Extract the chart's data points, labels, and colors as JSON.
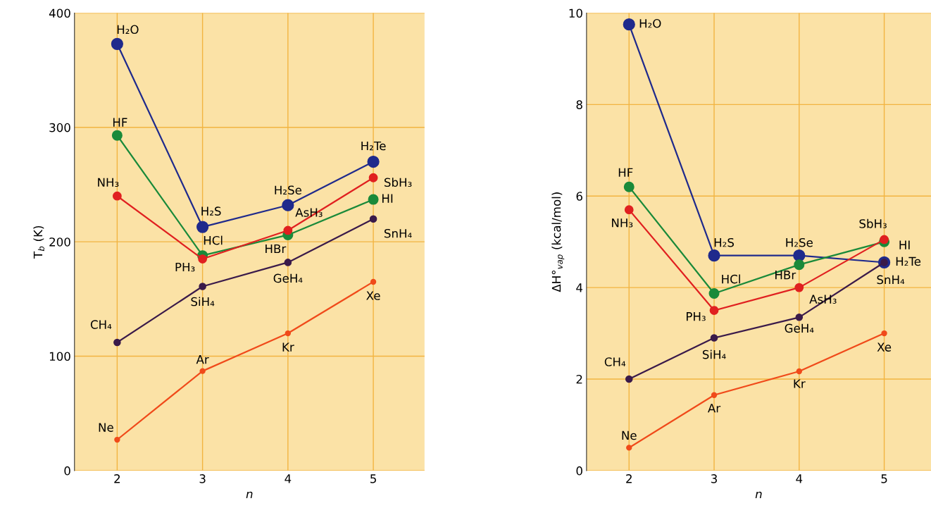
{
  "chart_data": [
    {
      "type": "line",
      "xlabel": "n",
      "ylabel": "T$_{b}$ (K)",
      "x": [
        2,
        3,
        4,
        5
      ],
      "xlim": [
        1.5,
        5.6
      ],
      "xticks": [
        2,
        3,
        4,
        5
      ],
      "ylim": [
        0,
        400
      ],
      "yticks": [
        0,
        100,
        200,
        300,
        400
      ],
      "grid": true,
      "marker": "circle",
      "line_style": "solid",
      "series": [
        {
          "color": "#1f2a8c",
          "values": [
            373,
            213,
            232,
            270
          ]
        },
        {
          "color": "#1a8a3a",
          "values": [
            293,
            188,
            206,
            237
          ]
        },
        {
          "color": "#e02020",
          "values": [
            240,
            185,
            210,
            256
          ]
        },
        {
          "color": "#3a1a4a",
          "values": [
            112,
            161,
            182,
            220
          ]
        },
        {
          "color": "#f04a1a",
          "values": [
            27,
            87,
            120,
            165
          ]
        }
      ],
      "annotations": [
        {
          "text": "H₂O",
          "x": 2,
          "y": 373
        },
        {
          "text": "H₂S",
          "x": 3,
          "y": 213
        },
        {
          "text": "H₂Se",
          "x": 4,
          "y": 232
        },
        {
          "text": "H₂Te",
          "x": 5,
          "y": 270
        },
        {
          "text": "HF",
          "x": 2,
          "y": 293
        },
        {
          "text": "HCl",
          "x": 3,
          "y": 188
        },
        {
          "text": "HBr",
          "x": 4,
          "y": 206
        },
        {
          "text": "HI",
          "x": 5,
          "y": 237
        },
        {
          "text": "NH₃",
          "x": 2,
          "y": 240
        },
        {
          "text": "PH₃",
          "x": 3,
          "y": 185
        },
        {
          "text": "AsH₃",
          "x": 4,
          "y": 210
        },
        {
          "text": "SbH₃",
          "x": 5,
          "y": 256
        },
        {
          "text": "CH₄",
          "x": 2,
          "y": 112
        },
        {
          "text": "SiH₄",
          "x": 3,
          "y": 161
        },
        {
          "text": "GeH₄",
          "x": 4,
          "y": 182
        },
        {
          "text": "SnH₄",
          "x": 5,
          "y": 220
        },
        {
          "text": "Ne",
          "x": 2,
          "y": 27
        },
        {
          "text": "Ar",
          "x": 3,
          "y": 87
        },
        {
          "text": "Kr",
          "x": 4,
          "y": 120
        },
        {
          "text": "Xe",
          "x": 5,
          "y": 165
        }
      ]
    },
    {
      "type": "line",
      "xlabel": "n",
      "ylabel": "ΔH°$_{vap}$ (kcal/mol)",
      "x": [
        2,
        3,
        4,
        5
      ],
      "xlim": [
        1.5,
        5.55
      ],
      "xticks": [
        2,
        3,
        4,
        5
      ],
      "ylim": [
        0,
        10
      ],
      "yticks": [
        0,
        2,
        4,
        6,
        8,
        10
      ],
      "grid": true,
      "marker": "circle",
      "line_style": "solid",
      "series": [
        {
          "color": "#1f2a8c",
          "values": [
            9.75,
            4.7,
            4.7,
            4.55
          ]
        },
        {
          "color": "#1a8a3a",
          "values": [
            6.2,
            3.87,
            4.5,
            5.0
          ]
        },
        {
          "color": "#e02020",
          "values": [
            5.7,
            3.5,
            4.0,
            5.05
          ]
        },
        {
          "color": "#3a1a4a",
          "values": [
            2.0,
            2.9,
            3.35,
            4.55
          ]
        },
        {
          "color": "#f04a1a",
          "values": [
            0.5,
            1.65,
            2.17,
            3.0
          ]
        }
      ],
      "annotations": [
        {
          "text": "H₂O",
          "x": 2,
          "y": 9.75
        },
        {
          "text": "H₂S",
          "x": 3,
          "y": 4.7
        },
        {
          "text": "H₂Se",
          "x": 4,
          "y": 4.7
        },
        {
          "text": "H₂Te",
          "x": 5,
          "y": 4.55
        },
        {
          "text": "HF",
          "x": 2,
          "y": 6.2
        },
        {
          "text": "HCl",
          "x": 3,
          "y": 3.87
        },
        {
          "text": "HBr",
          "x": 4,
          "y": 4.5
        },
        {
          "text": "HI",
          "x": 5,
          "y": 5.0
        },
        {
          "text": "NH₃",
          "x": 2,
          "y": 5.7
        },
        {
          "text": "PH₃",
          "x": 3,
          "y": 3.5
        },
        {
          "text": "AsH₃",
          "x": 4,
          "y": 4.0
        },
        {
          "text": "SbH₃",
          "x": 5,
          "y": 5.05
        },
        {
          "text": "CH₄",
          "x": 2,
          "y": 2.0
        },
        {
          "text": "SiH₄",
          "x": 3,
          "y": 2.9
        },
        {
          "text": "GeH₄",
          "x": 4,
          "y": 3.35
        },
        {
          "text": "SnH₄",
          "x": 5,
          "y": 4.55
        },
        {
          "text": "Ne",
          "x": 2,
          "y": 0.5
        },
        {
          "text": "Ar",
          "x": 3,
          "y": 1.65
        },
        {
          "text": "Kr",
          "x": 4,
          "y": 2.17
        },
        {
          "text": "Xe",
          "x": 5,
          "y": 3.0
        }
      ]
    }
  ]
}
